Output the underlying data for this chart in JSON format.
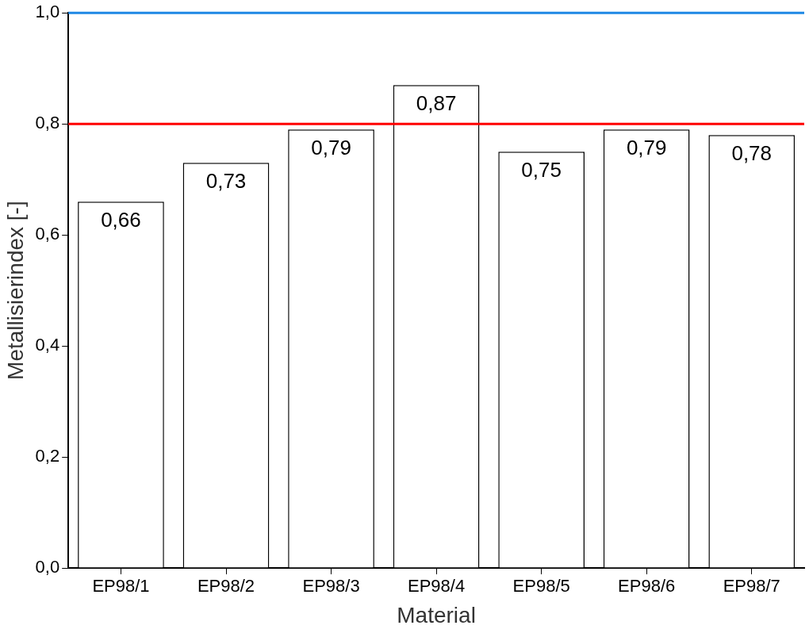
{
  "chart_data": {
    "type": "bar",
    "xlabel": "Material",
    "ylabel": "Metallisierindex [-]",
    "categories": [
      "EP98/1",
      "EP98/2",
      "EP98/3",
      "EP98/4",
      "EP98/5",
      "EP98/6",
      "EP98/7"
    ],
    "values": [
      0.66,
      0.73,
      0.79,
      0.87,
      0.75,
      0.79,
      0.78
    ],
    "color": "#ffffff",
    "value_labels": [
      "0,66",
      "0,73",
      "0,79",
      "0,87",
      "0,75",
      "0,79",
      "0,78"
    ],
    "ylim": [
      0,
      1.0
    ],
    "yticks": [
      {
        "value": 0,
        "label": "0,0"
      },
      {
        "value": 0.2,
        "label": "0,2"
      },
      {
        "value": 0.4,
        "label": "0,4"
      },
      {
        "value": 0.6,
        "label": "0,6"
      },
      {
        "value": 0.8,
        "label": "0,8"
      },
      {
        "value": 1.0,
        "label": "1,0"
      }
    ],
    "ref_lines": [
      {
        "axis": "y",
        "value": 0.8,
        "color": "#ff0000"
      },
      {
        "axis": "y",
        "value": 1.0,
        "color": "#1e88e5"
      }
    ],
    "grid": false,
    "legend": false
  }
}
